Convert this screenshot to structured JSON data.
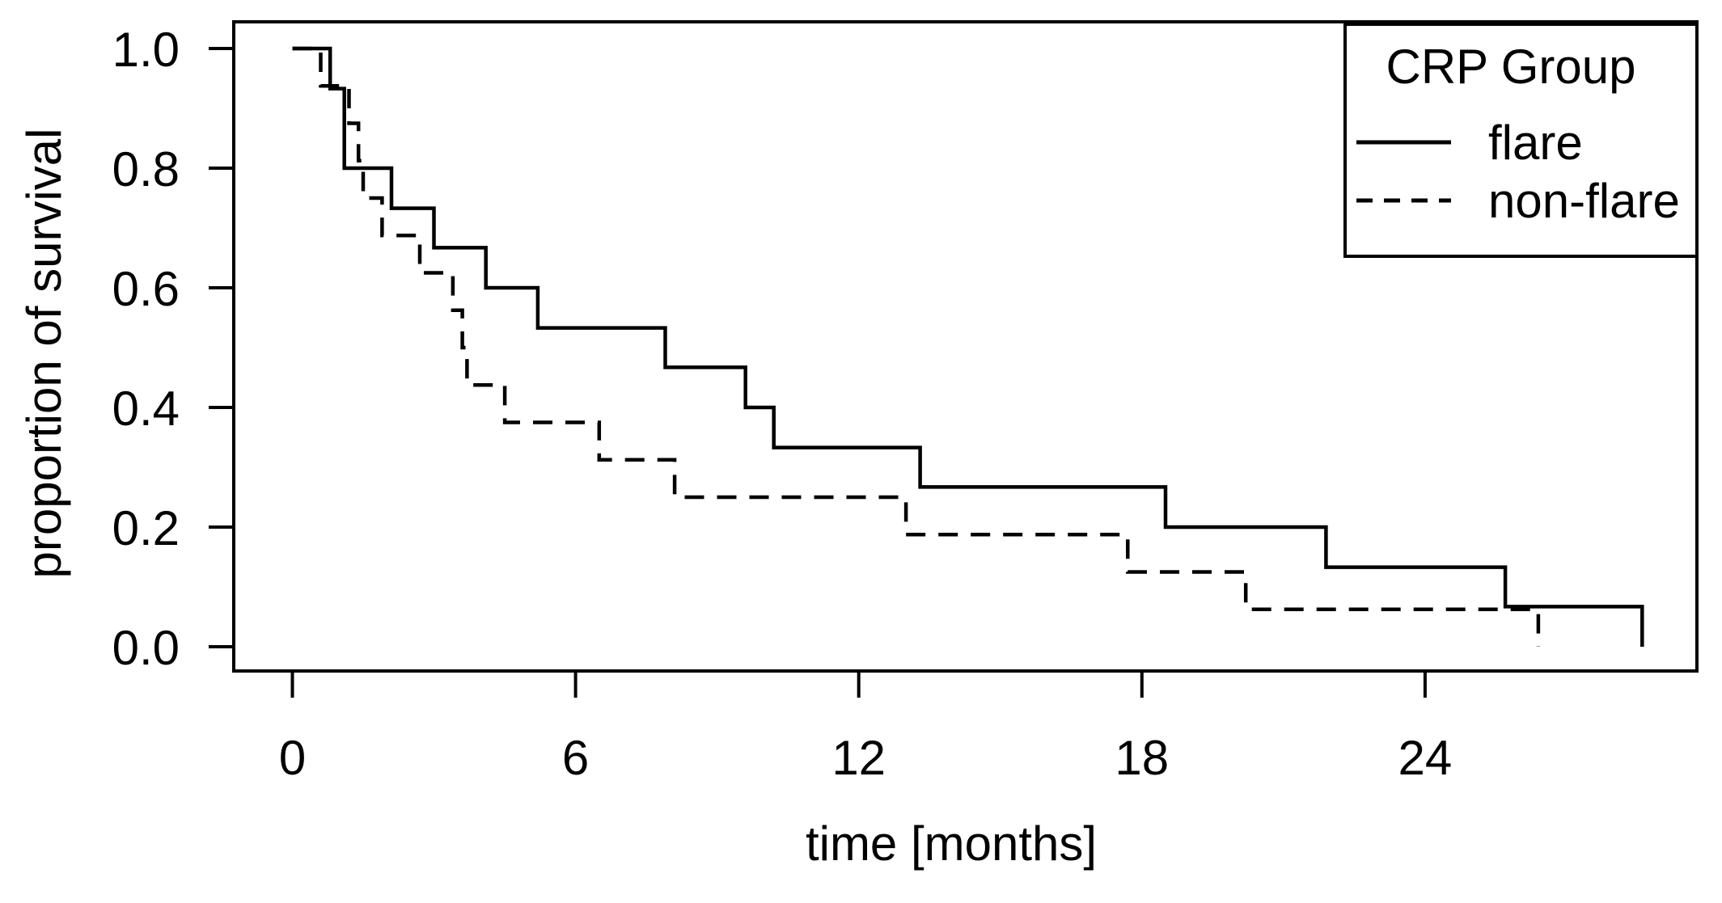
{
  "colors": {
    "foreground": "#000000",
    "background": "#ffffff"
  },
  "chart_data": {
    "type": "line",
    "subtype": "kaplan-meier-step-survival",
    "title": "",
    "xlabel": "time [months]",
    "ylabel": "proportion of survival",
    "grid": false,
    "xlim": [
      -1.3,
      29.8
    ],
    "ylim": [
      -0.04,
      1.04
    ],
    "x_ticks": [
      {
        "value": 0,
        "label": "0"
      },
      {
        "value": 6,
        "label": "6"
      },
      {
        "value": 12,
        "label": "12"
      },
      {
        "value": 18,
        "label": "18"
      },
      {
        "value": 24,
        "label": "24"
      }
    ],
    "y_ticks": [
      {
        "value": 0.0,
        "label": "0.0"
      },
      {
        "value": 0.2,
        "label": "0.2"
      },
      {
        "value": 0.4,
        "label": "0.4"
      },
      {
        "value": 0.6,
        "label": "0.6"
      },
      {
        "value": 0.8,
        "label": "0.8"
      },
      {
        "value": 1.0,
        "label": "1.0"
      }
    ],
    "legend": {
      "title": "CRP Group",
      "position": "top-right",
      "entries": [
        {
          "label": "flare",
          "linestyle": "solid"
        },
        {
          "label": "non-flare",
          "linestyle": "dashed"
        }
      ]
    },
    "series": [
      {
        "name": "flare",
        "linestyle": "solid",
        "color": "#000000",
        "points": [
          {
            "t": 0.0,
            "s": 1.0
          },
          {
            "t": 0.8,
            "s": 0.933
          },
          {
            "t": 1.1,
            "s": 0.8
          },
          {
            "t": 2.1,
            "s": 0.733
          },
          {
            "t": 3.0,
            "s": 0.667
          },
          {
            "t": 4.1,
            "s": 0.6
          },
          {
            "t": 5.2,
            "s": 0.533
          },
          {
            "t": 7.9,
            "s": 0.467
          },
          {
            "t": 9.6,
            "s": 0.4
          },
          {
            "t": 10.2,
            "s": 0.333
          },
          {
            "t": 13.3,
            "s": 0.267
          },
          {
            "t": 18.5,
            "s": 0.2
          },
          {
            "t": 21.9,
            "s": 0.133
          },
          {
            "t": 25.7,
            "s": 0.067
          },
          {
            "t": 28.6,
            "s": 0.0
          }
        ]
      },
      {
        "name": "non-flare",
        "linestyle": "dashed",
        "color": "#000000",
        "points": [
          {
            "t": 0.0,
            "s": 1.0
          },
          {
            "t": 0.6,
            "s": 0.9375
          },
          {
            "t": 1.2,
            "s": 0.875
          },
          {
            "t": 1.4,
            "s": 0.8125
          },
          {
            "t": 1.5,
            "s": 0.75
          },
          {
            "t": 1.9,
            "s": 0.6875
          },
          {
            "t": 2.7,
            "s": 0.625
          },
          {
            "t": 3.4,
            "s": 0.5625
          },
          {
            "t": 3.6,
            "s": 0.5
          },
          {
            "t": 3.7,
            "s": 0.4375
          },
          {
            "t": 4.5,
            "s": 0.375
          },
          {
            "t": 6.5,
            "s": 0.3125
          },
          {
            "t": 8.1,
            "s": 0.25
          },
          {
            "t": 13.0,
            "s": 0.1875
          },
          {
            "t": 17.7,
            "s": 0.125
          },
          {
            "t": 20.2,
            "s": 0.0625
          },
          {
            "t": 26.4,
            "s": 0.0
          }
        ]
      }
    ]
  }
}
